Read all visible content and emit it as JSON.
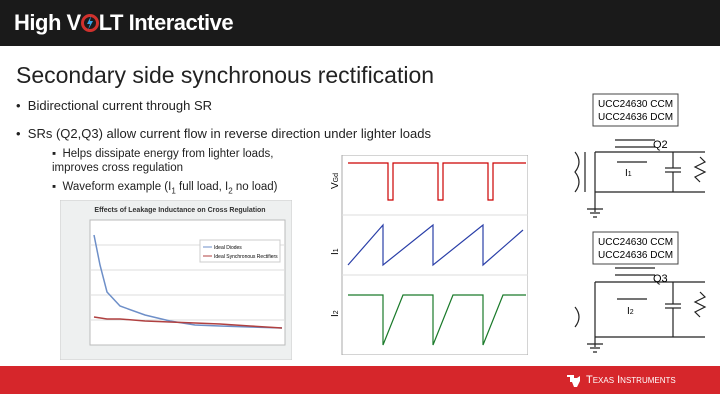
{
  "header": {
    "logo": [
      "High",
      "V",
      "LT",
      "Interactive"
    ]
  },
  "slide": {
    "title": "Secondary side synchronous rectification",
    "bullets": [
      "Bidirectional current through SR",
      "SRs (Q2,Q3) allow current flow in reverse direction under lighter loads"
    ],
    "sub_bullets": [
      [
        "Helps dissipate energy from lighter loads, improves cross regulation"
      ],
      [
        "Waveform example (I",
        "1",
        " full load, I",
        "2",
        " no load)"
      ]
    ]
  },
  "inset_chart": {
    "title": "Effects of Leakage Inductance on Cross Regulation",
    "legend": [
      "Ideal Diodes",
      "Ideal Synchronous Rectifiers"
    ]
  },
  "waveforms": {
    "labels": [
      "V",
      "Gd",
      "I",
      "1",
      "I",
      "2"
    ]
  },
  "circuit": {
    "top_box": [
      "UCC24630 CCM",
      "UCC24636 DCM"
    ],
    "top_switch": "Q2",
    "top_current": [
      "I",
      "1"
    ],
    "bottom_box": [
      "UCC24630 CCM",
      "UCC24636 DCM"
    ],
    "bottom_switch": "Q3",
    "bottom_current": [
      "I",
      "2"
    ]
  },
  "footer": {
    "brand": "Texas Instruments"
  }
}
